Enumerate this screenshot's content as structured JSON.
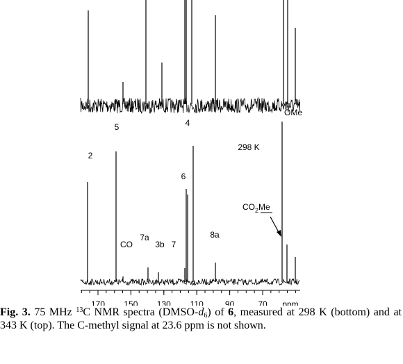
{
  "figure": {
    "labels": {
      "omethyl": "OMe",
      "c5": "5",
      "c4": "4",
      "c2": "2",
      "temp_bottom": "298 K",
      "c6": "6",
      "co2me": [
        "CO",
        "2",
        "Me"
      ],
      "co": "CO",
      "c7a": "7a",
      "c3b": "3b",
      "c7": "7",
      "c8a": "8a"
    },
    "axis": {
      "ticks": [
        170,
        150,
        130,
        110,
        90,
        70
      ],
      "unit": "ppm"
    },
    "caption": {
      "fig": "Fig. 3.",
      "t1": " 75 MHz ",
      "sup": "13",
      "t2": "C NMR spectra (DMSO-",
      "d": "d",
      "sub": "6",
      "t3": ") of ",
      "cmpd": "6",
      "t4": ", measured at 298 K (bottom) and at 343 K (top). The C-methyl signal at 23.6 ppm is not shown."
    }
  }
}
